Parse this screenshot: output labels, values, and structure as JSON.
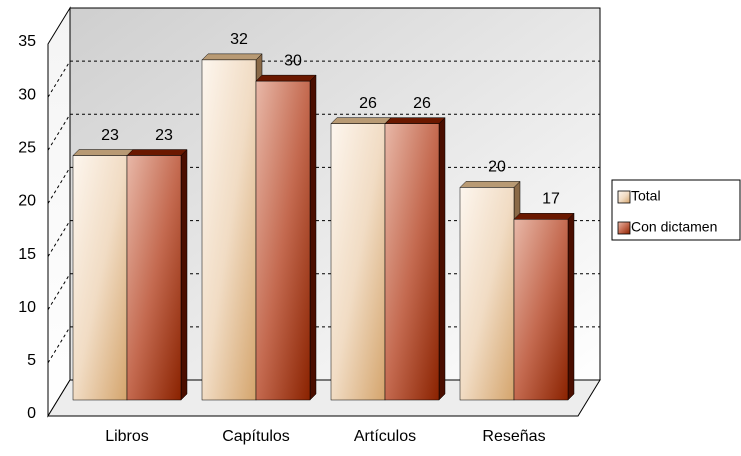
{
  "chart_data": {
    "type": "bar3d",
    "categories": [
      "Libros",
      "Capítulos",
      "Artículos",
      "Reseñas"
    ],
    "series": [
      {
        "name": "Total",
        "color": "#e8c9a0",
        "values": [
          23,
          32,
          26,
          20
        ]
      },
      {
        "name": "Con dictamen",
        "color": "#a8402a",
        "values": [
          23,
          30,
          26,
          17
        ]
      }
    ],
    "ylim": [
      0,
      35
    ],
    "yticks": [
      0,
      5,
      10,
      15,
      20,
      25,
      30,
      35
    ],
    "grid": true,
    "legend": "right"
  }
}
